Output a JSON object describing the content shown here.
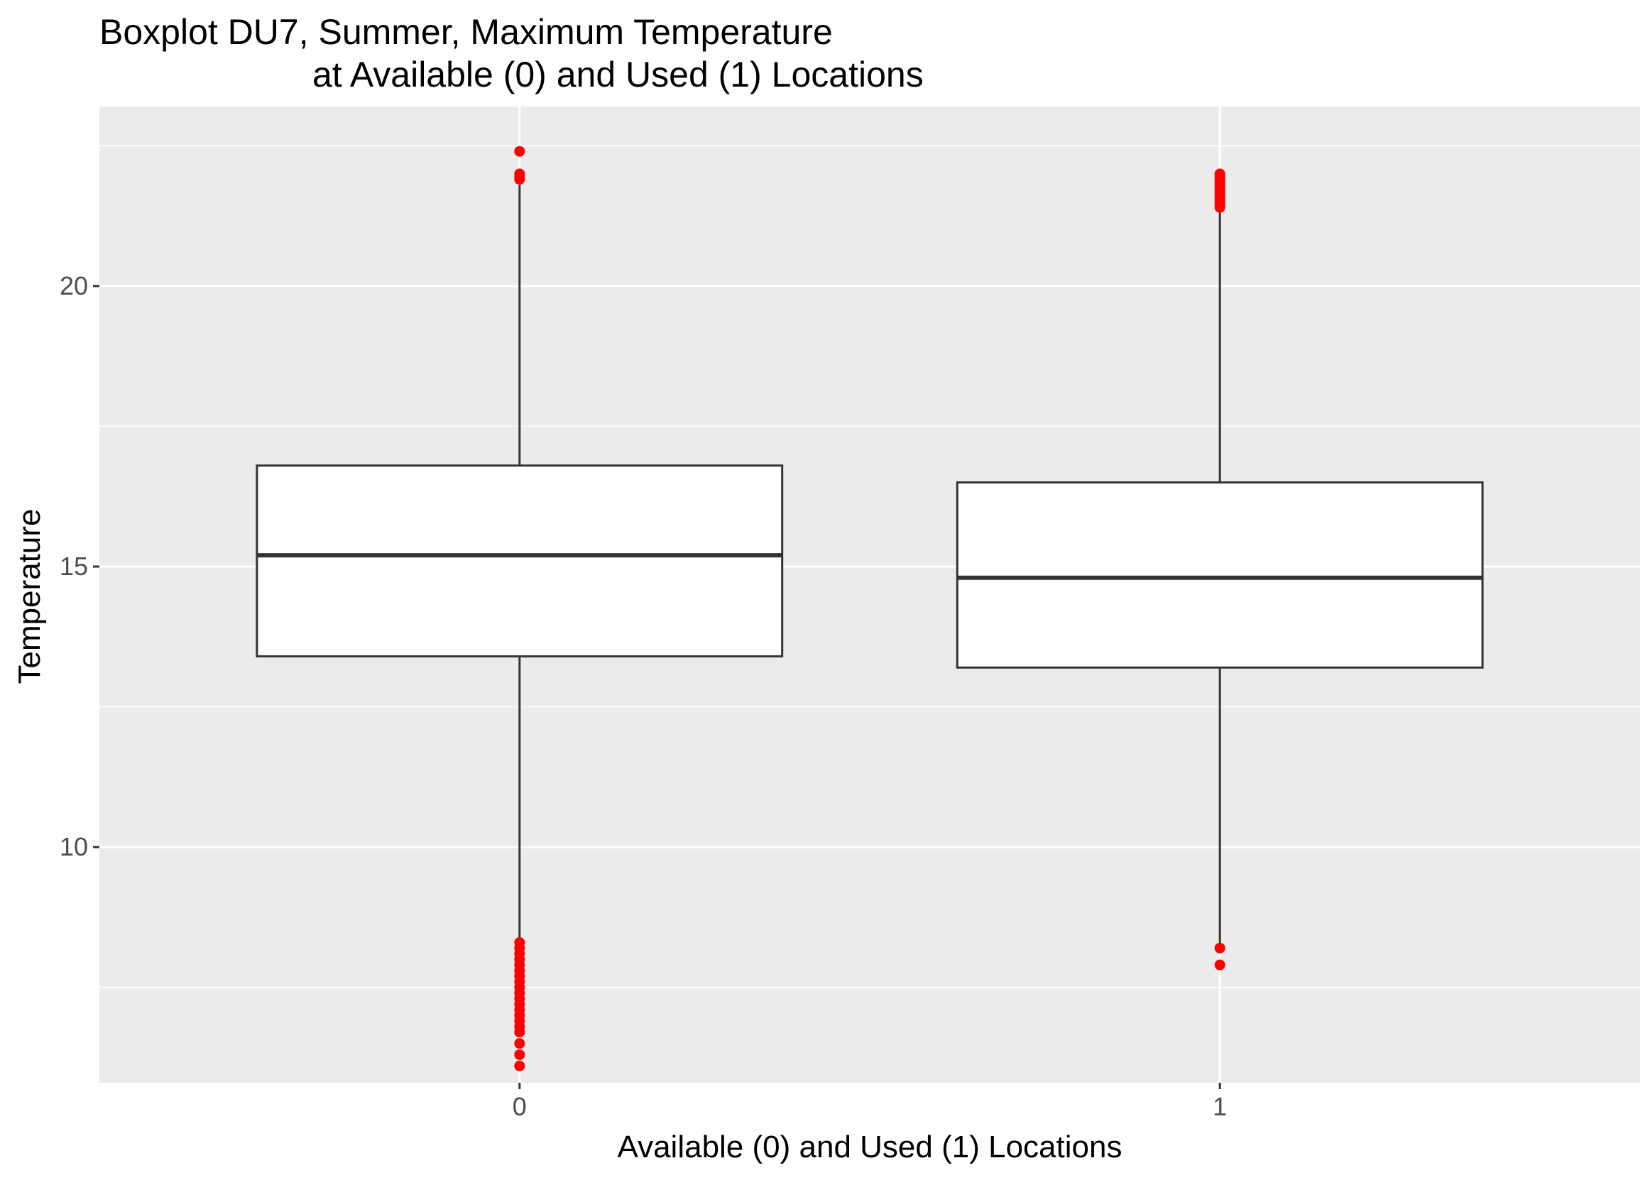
{
  "chart_data": {
    "type": "boxplot",
    "title_line1": "Boxplot DU7, Summer, Maximum Temperature",
    "title_line2": "at Available (0) and Used (1) Locations",
    "xlabel": "Available (0) and Used (1) Locations",
    "ylabel": "Temperature",
    "categories": [
      "0",
      "1"
    ],
    "ylim": [
      5.8,
      23.2
    ],
    "y_ticks": [
      10,
      15,
      20
    ],
    "y_tick_labels": [
      "10",
      "15",
      "20"
    ],
    "y_minor_ticks": [
      7.5,
      12.5,
      17.5,
      22.5
    ],
    "grid": true,
    "background_color": "#ebebeb",
    "grid_color": "#ffffff",
    "box_fill": "#ffffff",
    "box_line_color": "#333333",
    "outlier_color": "#ff0000",
    "boxes": [
      {
        "category": "0",
        "q1": 13.4,
        "median": 15.2,
        "q3": 16.8,
        "whisker_low": 8.3,
        "whisker_high": 21.8,
        "outliers": [
          22.4,
          22.0,
          21.95,
          21.9,
          8.3,
          8.2,
          8.1,
          8.0,
          7.9,
          7.8,
          7.7,
          7.6,
          7.5,
          7.4,
          7.3,
          7.2,
          7.1,
          7.0,
          6.9,
          6.8,
          6.7,
          6.5,
          6.3,
          6.1
        ]
      },
      {
        "category": "1",
        "q1": 13.2,
        "median": 14.8,
        "q3": 16.5,
        "whisker_low": 8.2,
        "whisker_high": 21.4,
        "outliers": [
          22.0,
          21.95,
          21.9,
          21.85,
          21.8,
          21.75,
          21.7,
          21.65,
          21.6,
          21.55,
          21.5,
          21.45,
          21.4,
          8.2,
          7.9
        ]
      }
    ]
  }
}
